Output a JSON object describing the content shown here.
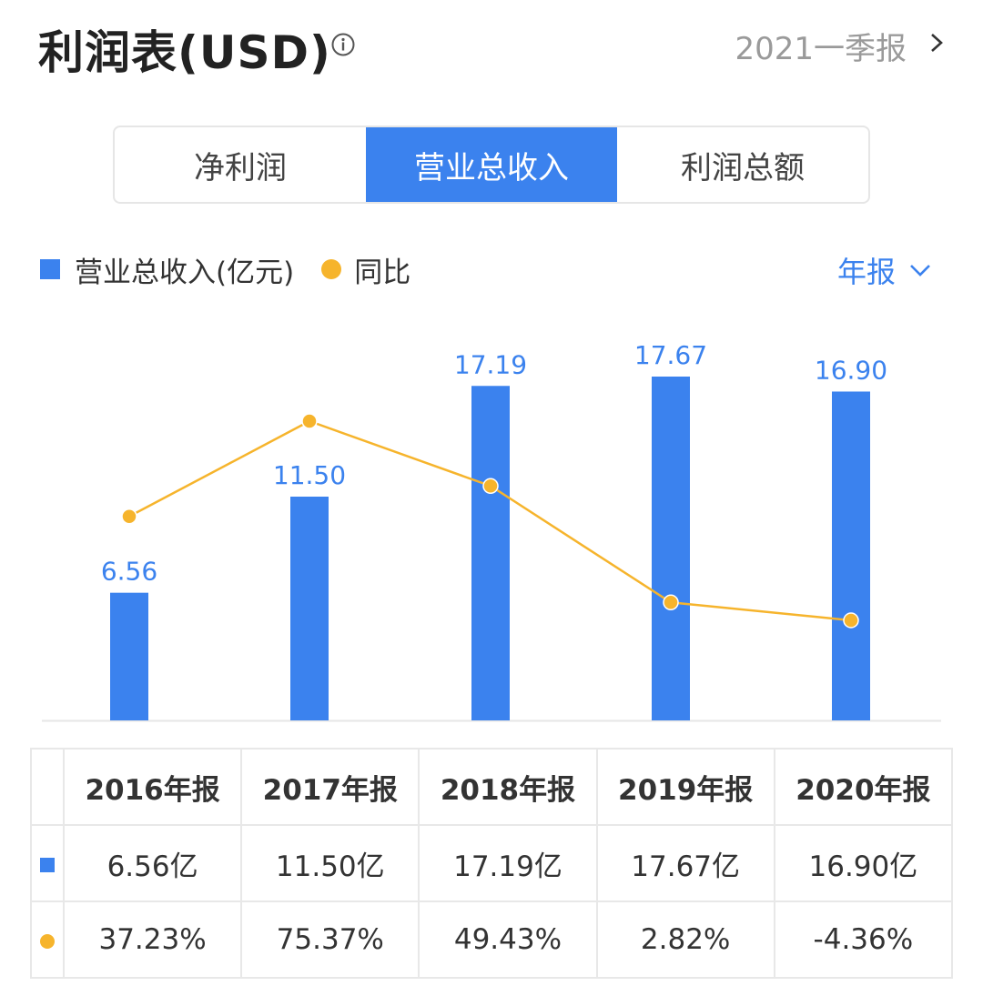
{
  "header": {
    "title": "利润表(USD)",
    "period": "2021一季报"
  },
  "tabs": [
    {
      "label": "净利润",
      "active": false
    },
    {
      "label": "营业总收入",
      "active": true
    },
    {
      "label": "利润总额",
      "active": false
    }
  ],
  "legend": {
    "bar_label": "营业总收入(亿元)",
    "line_label": "同比",
    "period_select": "年报"
  },
  "colors": {
    "bar": "#3b82ee",
    "line": "#f6b42c",
    "positive": "#e8474f",
    "negative": "#2aa46b"
  },
  "chart_data": {
    "type": "bar",
    "categories": [
      "2016年报",
      "2017年报",
      "2018年报",
      "2019年报",
      "2020年报"
    ],
    "series": [
      {
        "name": "营业总收入(亿元)",
        "type": "bar",
        "values": [
          6.56,
          11.5,
          17.19,
          17.67,
          16.9
        ],
        "labels": [
          "6.56",
          "11.50",
          "17.19",
          "17.67",
          "16.90"
        ]
      },
      {
        "name": "同比",
        "type": "line",
        "values": [
          37.23,
          75.37,
          49.43,
          2.82,
          -4.36
        ]
      }
    ],
    "grid": false
  },
  "table": {
    "headers": [
      "2016年报",
      "2017年报",
      "2018年报",
      "2019年报",
      "2020年报"
    ],
    "revenue": [
      "6.56亿",
      "11.50亿",
      "17.19亿",
      "17.67亿",
      "16.90亿"
    ],
    "yoy": [
      "37.23%",
      "75.37%",
      "49.43%",
      "2.82%",
      "-4.36%"
    ]
  }
}
